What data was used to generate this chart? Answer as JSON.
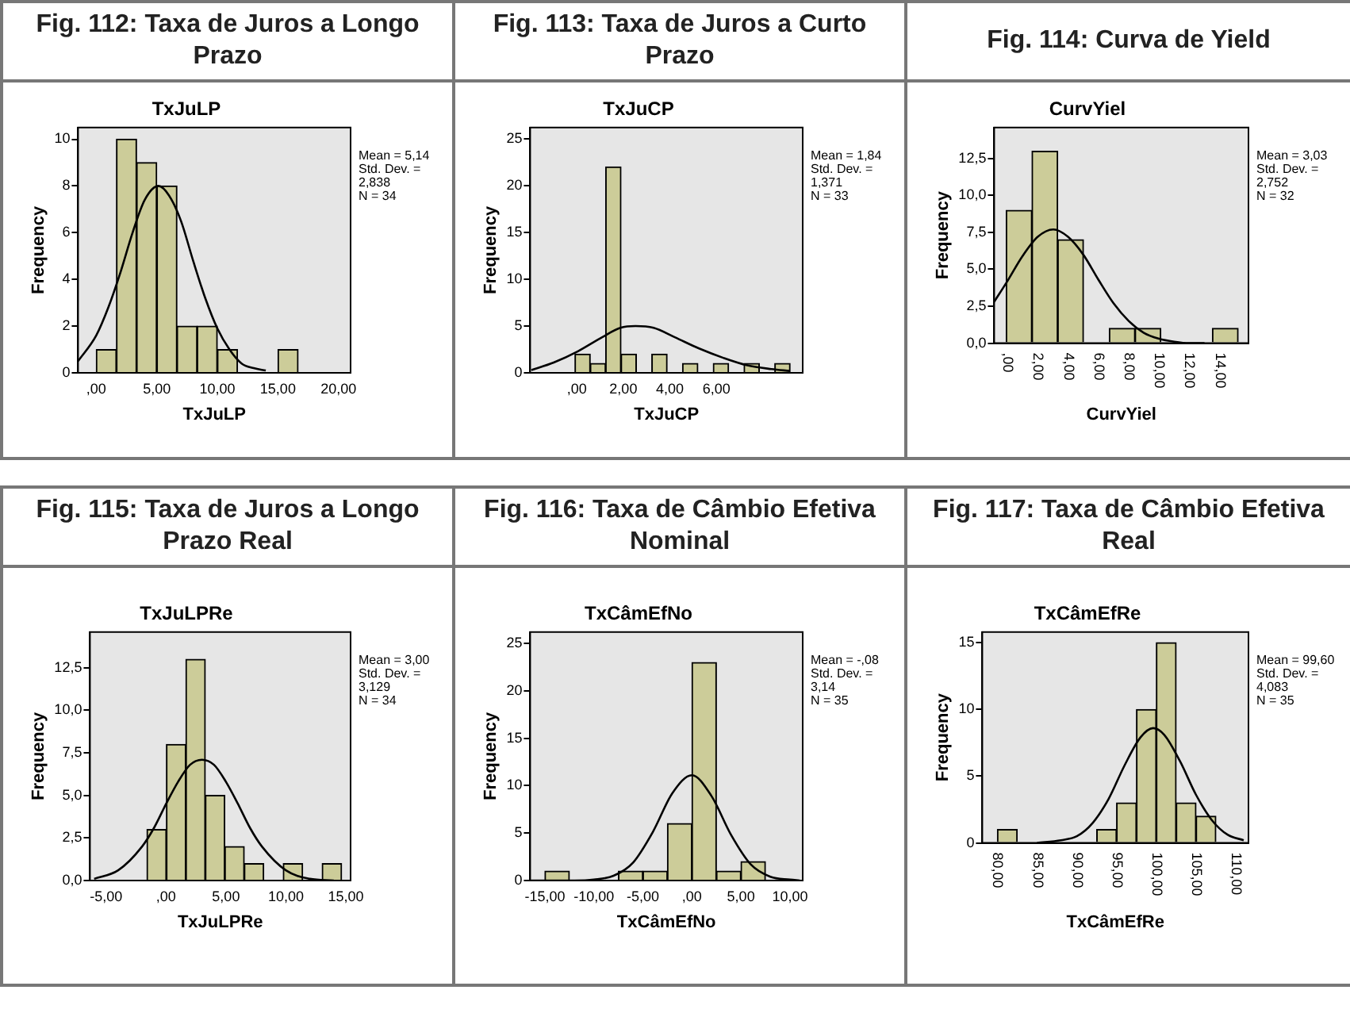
{
  "chart_data": [
    {
      "type": "histogram",
      "title": "Fig. 112: Taxa de Juros a Longo Prazo",
      "subtitle": "TxJuLP",
      "xlabel": "TxJuLP",
      "ylabel": "Frequency",
      "color": "#cccc99",
      "bins": [
        0,
        1.67,
        3.33,
        5,
        6.67,
        8.33,
        10,
        11.67,
        13.33,
        15,
        16.67
      ],
      "values": [
        1,
        10,
        9,
        8,
        2,
        2,
        1,
        0,
        0,
        1
      ],
      "series": [
        {
          "type": "line",
          "color": "#000000",
          "x": [
            -1.5,
            0,
            1,
            2,
            3,
            4,
            5.14,
            6,
            7,
            8,
            9,
            10,
            11,
            12,
            13,
            14
          ],
          "values": [
            0.5,
            1.6,
            2.8,
            4.3,
            6.0,
            7.4,
            8,
            7.6,
            6.5,
            4.8,
            3.2,
            1.9,
            1.0,
            0.4,
            0.2,
            0.1
          ]
        }
      ],
      "xlim": [
        -1.5,
        21
      ],
      "xticks": [
        {
          "value": 0,
          "label": ",00"
        },
        {
          "value": 5,
          "label": "5,00"
        },
        {
          "value": 10,
          "label": "10,00"
        },
        {
          "value": 15,
          "label": "15,00"
        },
        {
          "value": 20,
          "label": "20,00"
        }
      ],
      "ylim": [
        0,
        10.5
      ],
      "yticks": [
        0,
        2,
        4,
        6,
        8,
        10
      ],
      "annotations": [
        "Mean = 5,14",
        "Std. Dev. =",
        "2,838",
        "N = 34"
      ]
    },
    {
      "type": "histogram",
      "title": "Fig. 113: Taxa de Juros a Curto Prazo",
      "subtitle": "TxJuCP",
      "xlabel": "TxJuCP",
      "ylabel": "Frequency",
      "color": "#cccc99",
      "bins": [
        -0.08,
        0.58,
        1.24,
        1.9,
        2.56,
        3.22,
        3.88,
        4.54,
        5.2,
        5.86,
        6.52,
        7.18,
        7.84,
        8.5,
        9.16
      ],
      "values": [
        2,
        1,
        22,
        2,
        0,
        2,
        0,
        1,
        0,
        1,
        0,
        1,
        0,
        1
      ],
      "series": [
        {
          "type": "line",
          "color": "#000000",
          "x": [
            -1.95,
            -0.99,
            0.05,
            1.09,
            1.87,
            2.52,
            3.3,
            4.21,
            5.25,
            6.29,
            7.32,
            8.36,
            9.14
          ],
          "values": [
            0.3,
            1.1,
            2.3,
            3.8,
            4.8,
            5.0,
            4.8,
            3.8,
            2.6,
            1.6,
            0.8,
            0.4,
            0.2
          ]
        }
      ],
      "xlim": [
        -2,
        9.7
      ],
      "xticks": [
        {
          "value": 0,
          "label": ",00"
        },
        {
          "value": 2,
          "label": "2,00"
        },
        {
          "value": 4,
          "label": "4,00"
        },
        {
          "value": 6,
          "label": "6,00"
        }
      ],
      "ylim": [
        0,
        26.2
      ],
      "yticks": [
        0,
        5,
        10,
        15,
        20,
        25
      ],
      "annotations": [
        "Mean = 1,84",
        "Std. Dev. =",
        "1,371",
        "N = 33"
      ]
    },
    {
      "type": "histogram",
      "title": "Fig. 114: Curva de Yield",
      "subtitle": "CurvYiel",
      "xlabel": "CurvYiel",
      "ylabel": "Frequency",
      "color": "#cccc99",
      "bins": [
        -0.08,
        1.62,
        3.32,
        5.02,
        6.72,
        8.42,
        10.12,
        11.82,
        13.52,
        15.22
      ],
      "values": [
        9,
        13,
        7,
        0,
        1,
        1,
        0,
        0,
        1
      ],
      "series": [
        {
          "type": "line",
          "color": "#000000",
          "x": [
            -0.87,
            0,
            1,
            2,
            3.03,
            4,
            5,
            6,
            7,
            8,
            9,
            10,
            11,
            12,
            13
          ],
          "values": [
            2.8,
            4.2,
            5.9,
            7.2,
            7.7,
            7.2,
            6.0,
            4.3,
            2.7,
            1.5,
            0.7,
            0.3,
            0.1,
            0.0,
            0.0
          ]
        }
      ],
      "xlim": [
        -0.87,
        15.9
      ],
      "xticks": [
        {
          "value": 0,
          "label": ",00"
        },
        {
          "value": 2,
          "label": "2,00"
        },
        {
          "value": 4,
          "label": "4,00"
        },
        {
          "value": 6,
          "label": "6,00"
        },
        {
          "value": 8,
          "label": "8,00"
        },
        {
          "value": 10,
          "label": "10,00"
        },
        {
          "value": 12,
          "label": "12,00"
        },
        {
          "value": 14,
          "label": "14,00"
        }
      ],
      "ylim": [
        0,
        14.6
      ],
      "yticks": [
        {
          "value": 0,
          "label": "0,0"
        },
        {
          "value": 2.5,
          "label": "2,5"
        },
        {
          "value": 5,
          "label": "5,0"
        },
        {
          "value": 7.5,
          "label": "7,5"
        },
        {
          "value": 10,
          "label": "10,0"
        },
        {
          "value": 12.5,
          "label": "12,5"
        }
      ],
      "annotations": [
        "Mean = 3,03",
        "Std. Dev. =",
        "2,752",
        "N = 32"
      ]
    },
    {
      "type": "histogram",
      "title": "Fig. 115: Taxa de Juros a Longo Prazo Real",
      "subtitle": "TxJuLPRe",
      "xlabel": "TxJuLPRe",
      "ylabel": "Frequency",
      "color": "#cccc99",
      "bins": [
        -1.6,
        0.03,
        1.65,
        3.28,
        4.9,
        6.53,
        8.15,
        9.78,
        11.4,
        13.03,
        14.65
      ],
      "values": [
        3,
        8,
        13,
        5,
        2,
        1,
        0,
        1,
        0,
        1
      ],
      "series": [
        {
          "type": "line",
          "color": "#000000",
          "x": [
            -6,
            -4,
            -2,
            -1,
            0,
            1,
            2,
            3,
            4,
            5,
            6,
            7,
            8,
            10,
            12,
            14
          ],
          "values": [
            0.1,
            0.6,
            2.0,
            3.1,
            4.5,
            5.8,
            6.8,
            7.1,
            6.8,
            5.8,
            4.5,
            3.1,
            2.0,
            0.6,
            0.1,
            0.0
          ]
        }
      ],
      "xlim": [
        -6.35,
        15.4
      ],
      "xticks": [
        {
          "value": -5,
          "label": "-5,00"
        },
        {
          "value": 0,
          "label": ",00"
        },
        {
          "value": 5,
          "label": "5,00"
        },
        {
          "value": 10,
          "label": "10,00"
        },
        {
          "value": 15,
          "label": "15,00"
        }
      ],
      "ylim": [
        0,
        14.6
      ],
      "yticks": [
        {
          "value": 0,
          "label": "0,0"
        },
        {
          "value": 2.5,
          "label": "2,5"
        },
        {
          "value": 5,
          "label": "5,0"
        },
        {
          "value": 7.5,
          "label": "7,5"
        },
        {
          "value": 10,
          "label": "10,0"
        },
        {
          "value": 12.5,
          "label": "12,5"
        }
      ],
      "annotations": [
        "Mean = 3,00",
        "Std. Dev. =",
        "3,129",
        "N = 34"
      ]
    },
    {
      "type": "histogram",
      "title": "Fig. 116: Taxa de Câmbio Efetiva Nominal",
      "subtitle": "TxCâmEfNo",
      "xlabel": "TxCâmEfNo",
      "ylabel": "Frequency",
      "color": "#cccc99",
      "bins": [
        -15,
        -12.5,
        -10,
        -7.5,
        -5,
        -2.5,
        0,
        2.5,
        5,
        7.5
      ],
      "values": [
        1,
        0,
        0,
        1,
        1,
        6,
        23,
        1,
        2
      ],
      "series": [
        {
          "type": "line",
          "color": "#000000",
          "x": [
            -16.5,
            -12,
            -10,
            -8,
            -6,
            -4,
            -2,
            0,
            2,
            4,
            6,
            8,
            10,
            11
          ],
          "values": [
            0,
            0.0,
            0.1,
            0.5,
            1.9,
            5.1,
            9.2,
            11.1,
            8.9,
            4.8,
            1.7,
            0.4,
            0.1,
            0.0
          ]
        }
      ],
      "xlim": [
        -16.5,
        11.3
      ],
      "xticks": [
        {
          "value": -15,
          "label": "-15,00"
        },
        {
          "value": -10,
          "label": "-10,00"
        },
        {
          "value": -5,
          "label": "-5,00"
        },
        {
          "value": 0,
          "label": ",00"
        },
        {
          "value": 5,
          "label": "5,00"
        },
        {
          "value": 10,
          "label": "10,00"
        }
      ],
      "ylim": [
        0,
        26.2
      ],
      "yticks": [
        0,
        5,
        10,
        15,
        20,
        25
      ],
      "annotations": [
        "Mean = -,08",
        "Std. Dev. =",
        "3,14",
        "N = 35"
      ]
    },
    {
      "type": "histogram",
      "title": "Fig. 117: Taxa de Câmbio Efetiva Real",
      "subtitle": "TxCâmEfRe",
      "xlabel": "TxCâmEfRe",
      "ylabel": "Frequency",
      "color": "#cccc99",
      "bins": [
        80,
        82.5,
        85,
        87.5,
        90,
        92.5,
        95,
        97.5,
        100,
        102.5,
        105,
        107.5
      ],
      "values": [
        1,
        0,
        0,
        0,
        0,
        1,
        3,
        10,
        15,
        3,
        2
      ],
      "series": [
        {
          "type": "line",
          "color": "#000000",
          "x": [
            85,
            88,
            90,
            92,
            94,
            96,
            98,
            99.6,
            101,
            103,
            105,
            107,
            109,
            111
          ],
          "values": [
            0.0,
            0.2,
            0.5,
            1.5,
            3.3,
            5.8,
            7.9,
            8.6,
            8.1,
            6.1,
            3.6,
            1.7,
            0.6,
            0.2
          ]
        }
      ],
      "xlim": [
        78.1,
        111.6
      ],
      "xticks": [
        {
          "value": 80,
          "label": "80,00"
        },
        {
          "value": 85,
          "label": "85,00"
        },
        {
          "value": 90,
          "label": "90,00"
        },
        {
          "value": 95,
          "label": "95,00"
        },
        {
          "value": 100,
          "label": "100,00"
        },
        {
          "value": 105,
          "label": "105,00"
        },
        {
          "value": 110,
          "label": "110,00"
        }
      ],
      "ylim": [
        0,
        15.8
      ],
      "yticks": [
        0,
        5,
        10,
        15
      ],
      "annotations": [
        "Mean = 99,60",
        "Std. Dev. =",
        "4,083",
        "N = 35"
      ]
    }
  ]
}
